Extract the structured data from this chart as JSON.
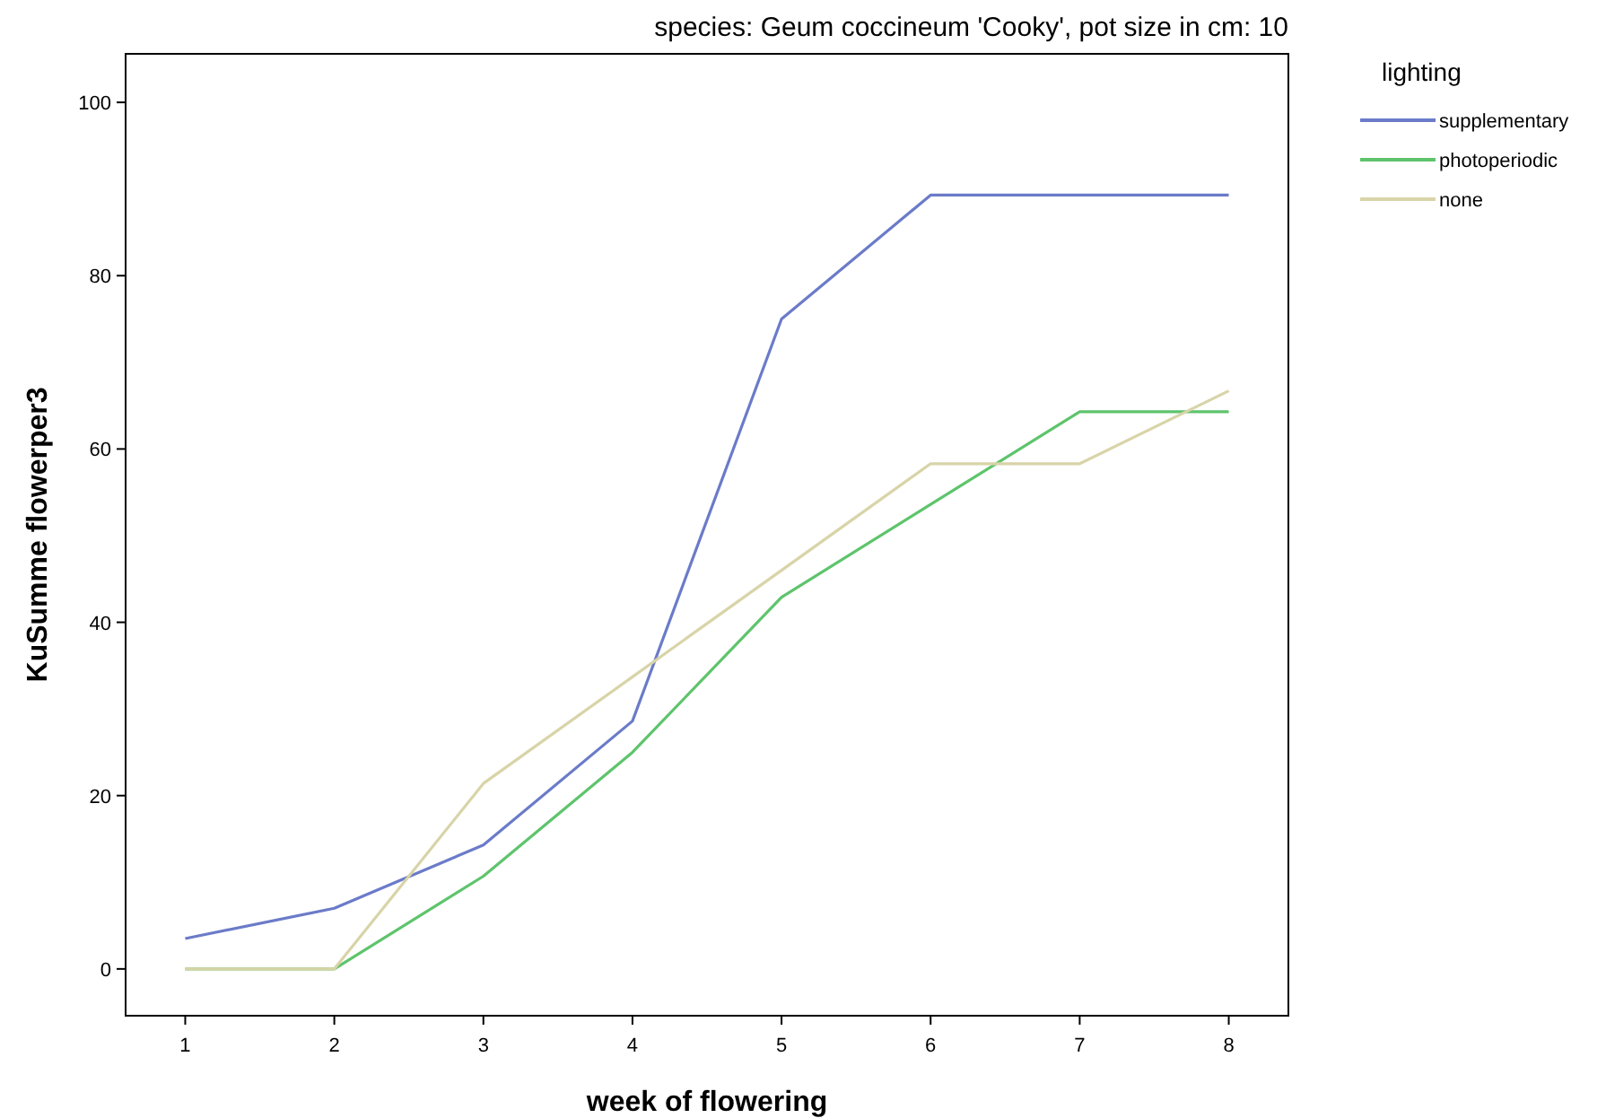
{
  "chart_data": {
    "type": "line",
    "title": "species: Geum coccineum 'Cooky', pot size in cm: 10",
    "xlabel": "week of flowering",
    "ylabel": "KuSumme flowerper3",
    "legend_title": "lighting",
    "legend": "top right",
    "grid": false,
    "x": [
      1,
      2,
      3,
      4,
      5,
      6,
      7,
      8
    ],
    "xlim": [
      0.6,
      8.4
    ],
    "xticks": [
      1,
      2,
      3,
      4,
      5,
      6,
      7,
      8
    ],
    "ylim": [
      -5.4,
      105.6
    ],
    "yticks": [
      0,
      20,
      40,
      60,
      80,
      100
    ],
    "series": [
      {
        "name": "supplementary",
        "color": "#6b7bc9",
        "values": [
          3.5,
          7,
          14.3,
          28.6,
          75,
          89.3,
          89.3,
          89.3
        ]
      },
      {
        "name": "photoperiodic",
        "color": "#5ec46c",
        "values": [
          0,
          0,
          10.7,
          25,
          42.9,
          53.6,
          64.3,
          64.3
        ]
      },
      {
        "name": "none",
        "color": "#d8d4a8",
        "values": [
          0,
          0,
          21.4,
          33.7,
          46,
          58.3,
          58.3,
          66.7
        ]
      }
    ]
  }
}
